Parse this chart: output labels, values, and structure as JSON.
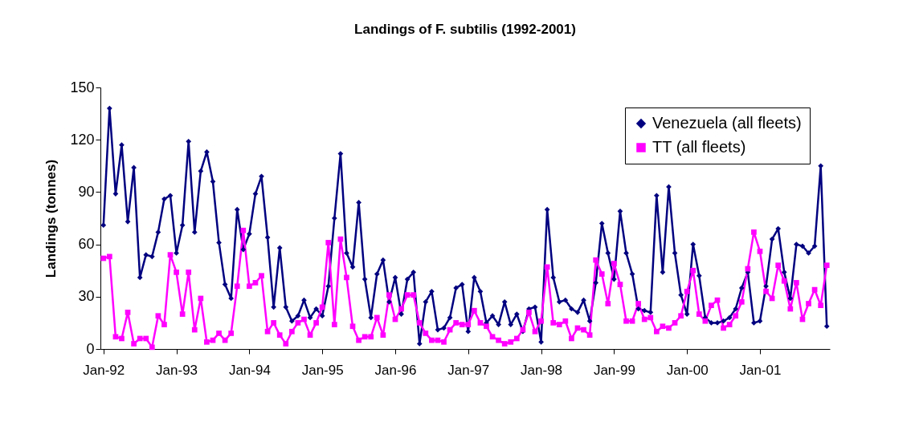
{
  "chart_data": {
    "type": "line",
    "title": "Landings of F. subtilis (1992-2001)",
    "ylabel": "Landings (tonnes)",
    "categories": [
      "Jan-92",
      null,
      null,
      null,
      null,
      null,
      null,
      null,
      null,
      null,
      null,
      null,
      "Jan-93",
      null,
      null,
      null,
      null,
      null,
      null,
      null,
      null,
      null,
      null,
      null,
      "Jan-94",
      null,
      null,
      null,
      null,
      null,
      null,
      null,
      null,
      null,
      null,
      null,
      "Jan-95",
      null,
      null,
      null,
      null,
      null,
      null,
      null,
      null,
      null,
      null,
      null,
      "Jan-96",
      null,
      null,
      null,
      null,
      null,
      null,
      null,
      null,
      null,
      null,
      null,
      "Jan-97",
      null,
      null,
      null,
      null,
      null,
      null,
      null,
      null,
      null,
      null,
      null,
      "Jan-98",
      null,
      null,
      null,
      null,
      null,
      null,
      null,
      null,
      null,
      null,
      null,
      "Jan-99",
      null,
      null,
      null,
      null,
      null,
      null,
      null,
      null,
      null,
      null,
      null,
      "Jan-00",
      null,
      null,
      null,
      null,
      null,
      null,
      null,
      null,
      null,
      null,
      null,
      "Jan-01",
      null,
      null,
      null,
      null,
      null,
      null,
      null,
      null,
      null,
      null,
      null
    ],
    "series": [
      {
        "name": "Venezuela (all fleets)",
        "color": "#000080",
        "marker": "diamond",
        "values": [
          71,
          138,
          89,
          117,
          73,
          104,
          41,
          54,
          53,
          67,
          86,
          88,
          55,
          71,
          119,
          67,
          102,
          113,
          96,
          61,
          37,
          29,
          80,
          57,
          66,
          89,
          99,
          64,
          24,
          58,
          24,
          16,
          19,
          28,
          18,
          23,
          19,
          36,
          75,
          112,
          55,
          47,
          84,
          40,
          18,
          43,
          51,
          27,
          41,
          20,
          40,
          44,
          3,
          27,
          33,
          11,
          12,
          18,
          35,
          37,
          10,
          41,
          33,
          15,
          19,
          14,
          27,
          14,
          20,
          10,
          23,
          24,
          4,
          80,
          41,
          27,
          28,
          23,
          21,
          28,
          16,
          38,
          72,
          55,
          40,
          79,
          55,
          43,
          23,
          22,
          21,
          88,
          44,
          93,
          55,
          31,
          20,
          60,
          42,
          18,
          15,
          15,
          16,
          18,
          23,
          35,
          44,
          15,
          16,
          36,
          63,
          69,
          44,
          29,
          60,
          59,
          55,
          59,
          105,
          13
        ]
      },
      {
        "name": "TT (all fleets)",
        "color": "#ff00ff",
        "marker": "square",
        "values": [
          52,
          53,
          7,
          6,
          21,
          3,
          6,
          6,
          1,
          19,
          14,
          54,
          44,
          20,
          44,
          11,
          29,
          4,
          5,
          9,
          5,
          9,
          36,
          68,
          36,
          38,
          42,
          10,
          15,
          8,
          3,
          10,
          15,
          17,
          8,
          15,
          24,
          61,
          14,
          63,
          41,
          13,
          5,
          7,
          7,
          18,
          8,
          31,
          17,
          23,
          31,
          31,
          15,
          9,
          5,
          5,
          4,
          11,
          15,
          14,
          14,
          22,
          15,
          13,
          7,
          5,
          3,
          4,
          6,
          11,
          21,
          10,
          16,
          47,
          15,
          14,
          16,
          6,
          12,
          11,
          8,
          51,
          43,
          26,
          49,
          37,
          16,
          16,
          26,
          17,
          18,
          10,
          13,
          12,
          15,
          19,
          33,
          45,
          20,
          16,
          25,
          28,
          12,
          14,
          19,
          27,
          46,
          67,
          56,
          33,
          29,
          48,
          39,
          23,
          38,
          17,
          26,
          34,
          25,
          48
        ]
      }
    ],
    "ylim": [
      0,
      150
    ],
    "yticks": [
      0,
      30,
      60,
      90,
      120,
      150
    ],
    "grid": false,
    "legend": "top right"
  }
}
